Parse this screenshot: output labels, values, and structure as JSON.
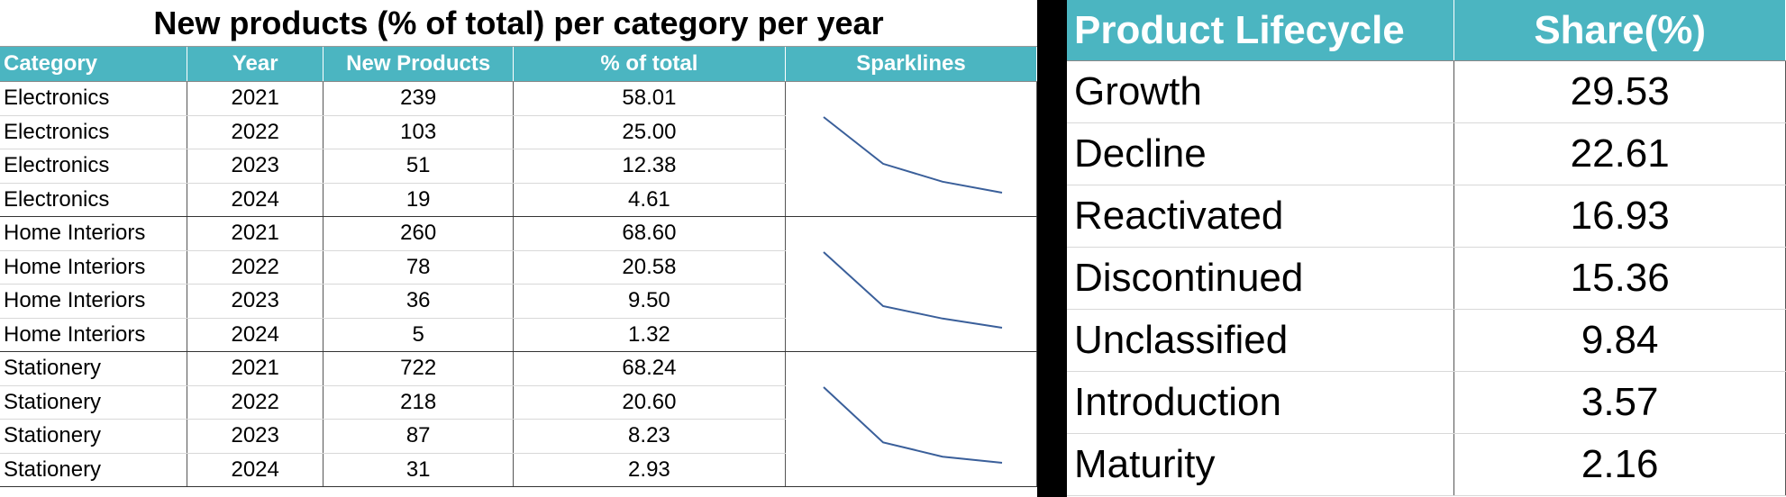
{
  "left_table": {
    "title": "New products (% of total) per category per year",
    "headers": [
      "Category",
      "Year",
      "New Products",
      "% of total",
      "Sparklines"
    ],
    "groups": [
      {
        "rows": [
          {
            "category": "Electronics",
            "year": "2021",
            "new_products": "239",
            "pct": "58.01"
          },
          {
            "category": "Electronics",
            "year": "2022",
            "new_products": "103",
            "pct": "25.00"
          },
          {
            "category": "Electronics",
            "year": "2023",
            "new_products": "51",
            "pct": "12.38"
          },
          {
            "category": "Electronics",
            "year": "2024",
            "new_products": "19",
            "pct": "4.61"
          }
        ],
        "spark": [
          58.01,
          25.0,
          12.38,
          4.61
        ]
      },
      {
        "rows": [
          {
            "category": "Home Interiors",
            "year": "2021",
            "new_products": "260",
            "pct": "68.60"
          },
          {
            "category": "Home Interiors",
            "year": "2022",
            "new_products": "78",
            "pct": "20.58"
          },
          {
            "category": "Home Interiors",
            "year": "2023",
            "new_products": "36",
            "pct": "9.50"
          },
          {
            "category": "Home Interiors",
            "year": "2024",
            "new_products": "5",
            "pct": "1.32"
          }
        ],
        "spark": [
          68.6,
          20.58,
          9.5,
          1.32
        ]
      },
      {
        "rows": [
          {
            "category": "Stationery",
            "year": "2021",
            "new_products": "722",
            "pct": "68.24"
          },
          {
            "category": "Stationery",
            "year": "2022",
            "new_products": "218",
            "pct": "20.60"
          },
          {
            "category": "Stationery",
            "year": "2023",
            "new_products": "87",
            "pct": "8.23"
          },
          {
            "category": "Stationery",
            "year": "2024",
            "new_products": "31",
            "pct": "2.93"
          }
        ],
        "spark": [
          68.24,
          20.6,
          8.23,
          2.93
        ]
      }
    ],
    "spark_color": "#3a5f9a",
    "header_color": "#4bb5c1"
  },
  "right_table": {
    "headers": [
      "Product Lifecycle",
      "Share(%)"
    ],
    "rows": [
      {
        "stage": "Growth",
        "share": "29.53"
      },
      {
        "stage": "Decline",
        "share": "22.61"
      },
      {
        "stage": "Reactivated",
        "share": "16.93"
      },
      {
        "stage": "Discontinued",
        "share": "15.36"
      },
      {
        "stage": "Unclassified",
        "share": "9.84"
      },
      {
        "stage": "Introduction",
        "share": "3.57"
      },
      {
        "stage": "Maturity",
        "share": "2.16"
      }
    ]
  }
}
